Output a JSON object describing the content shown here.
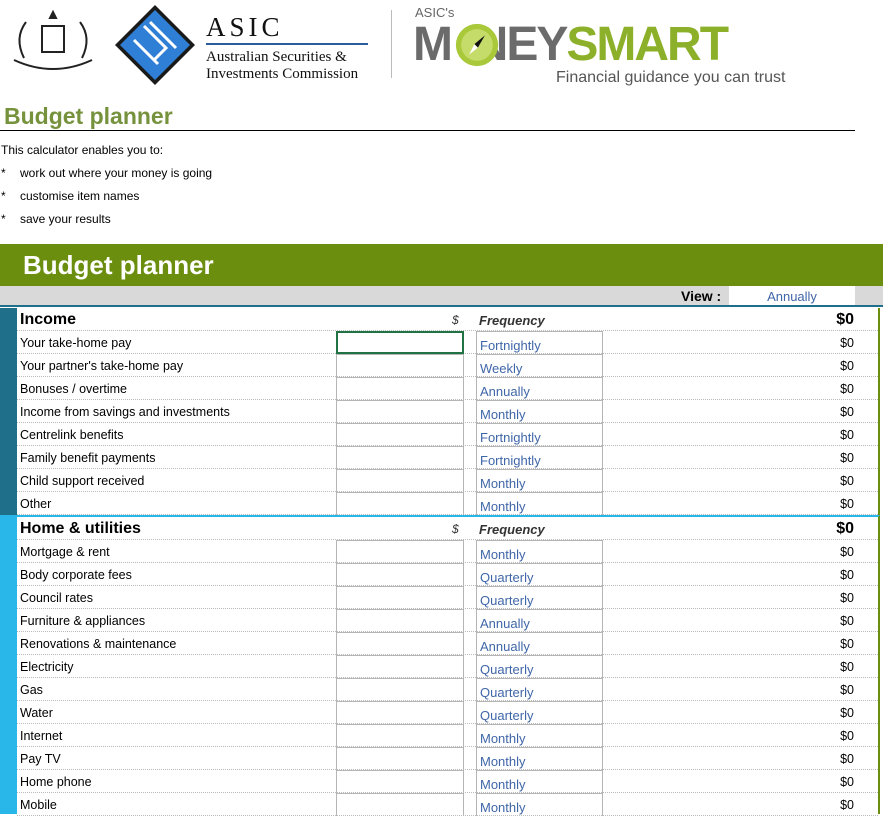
{
  "header": {
    "asic_name": "ASIC",
    "asic_full_1": "Australian Securities &",
    "asic_full_2": "Investments Commission",
    "ms_small": "ASIC's",
    "ms_grey": "M  NEY",
    "ms_green": "SMART",
    "ms_tag": "Financial guidance you can trust"
  },
  "page_title": "Budget planner",
  "intro": {
    "lead": "This calculator enables you to:",
    "bullets": [
      "work out where your money is going",
      "customise item names",
      "save your results"
    ]
  },
  "bar_title": "Budget planner",
  "view": {
    "label": "View :",
    "value": "Annually"
  },
  "colors": {
    "green": "#6b8e0f",
    "income_accent": "#1f6f8b",
    "home_accent": "#29b6e8",
    "link_blue": "#3f66a8"
  },
  "sections": [
    {
      "title": "Income",
      "dollar": "$",
      "freq_header": "Frequency",
      "total": "$0",
      "items": [
        {
          "label": "Your take-home pay",
          "freq": "Fortnightly",
          "total": "$0"
        },
        {
          "label": "Your partner's take-home pay",
          "freq": "Weekly",
          "total": "$0"
        },
        {
          "label": "Bonuses / overtime",
          "freq": "Annually",
          "total": "$0"
        },
        {
          "label": "Income from savings and investments",
          "freq": "Monthly",
          "total": "$0"
        },
        {
          "label": "Centrelink benefits",
          "freq": "Fortnightly",
          "total": "$0"
        },
        {
          "label": "Family benefit payments",
          "freq": "Fortnightly",
          "total": "$0"
        },
        {
          "label": "Child support received",
          "freq": "Monthly",
          "total": "$0"
        },
        {
          "label": "Other",
          "freq": "Monthly",
          "total": "$0"
        }
      ]
    },
    {
      "title": "Home & utilities",
      "dollar": "$",
      "freq_header": "Frequency",
      "total": "$0",
      "items": [
        {
          "label": "Mortgage & rent",
          "freq": "Monthly",
          "total": "$0"
        },
        {
          "label": "Body corporate fees",
          "freq": "Quarterly",
          "total": "$0"
        },
        {
          "label": "Council rates",
          "freq": "Quarterly",
          "total": "$0"
        },
        {
          "label": "Furniture & appliances",
          "freq": "Annually",
          "total": "$0"
        },
        {
          "label": "Renovations & maintenance",
          "freq": "Annually",
          "total": "$0"
        },
        {
          "label": "Electricity",
          "freq": "Quarterly",
          "total": "$0"
        },
        {
          "label": "Gas",
          "freq": "Quarterly",
          "total": "$0"
        },
        {
          "label": "Water",
          "freq": "Quarterly",
          "total": "$0"
        },
        {
          "label": "Internet",
          "freq": "Monthly",
          "total": "$0"
        },
        {
          "label": "Pay TV",
          "freq": "Monthly",
          "total": "$0"
        },
        {
          "label": "Home phone",
          "freq": "Monthly",
          "total": "$0"
        },
        {
          "label": "Mobile",
          "freq": "Monthly",
          "total": "$0"
        }
      ]
    }
  ]
}
